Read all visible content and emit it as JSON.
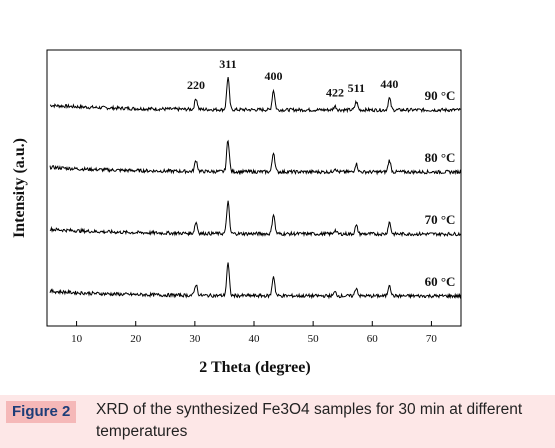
{
  "chart_data": {
    "type": "line",
    "xlabel": "2 Theta (degree)",
    "ylabel": "Intensity (a.u.)",
    "xlim": [
      5,
      75
    ],
    "xticks": [
      "10",
      "20",
      "30",
      "40",
      "50",
      "60",
      "70"
    ],
    "yticks": [],
    "grid": false,
    "line_color": "#000000",
    "peak_labels": [
      {
        "label": "220",
        "x": 30.2,
        "y": 1.2
      },
      {
        "label": "311",
        "x": 35.6,
        "y": 1.0
      },
      {
        "label": "400",
        "x": 43.3,
        "y": 1.0
      },
      {
        "label": "422",
        "x": 53.7,
        "y": 1.0
      },
      {
        "label": "511",
        "x": 57.3,
        "y": 1.0
      },
      {
        "label": "440",
        "x": 62.9,
        "y": 1.0
      }
    ],
    "series": [
      {
        "name": "90 °C",
        "offset": 3.0
      },
      {
        "name": "80 °C",
        "offset": 2.0
      },
      {
        "name": "70 °C",
        "offset": 1.0
      },
      {
        "name": "60 °C",
        "offset": 0.0
      }
    ],
    "peaks": [
      {
        "x": 30.2,
        "height": 0.18
      },
      {
        "x": 35.6,
        "height": 0.52
      },
      {
        "x": 43.3,
        "height": 0.32
      },
      {
        "x": 53.7,
        "height": 0.06
      },
      {
        "x": 57.3,
        "height": 0.13
      },
      {
        "x": 62.9,
        "height": 0.19
      }
    ]
  },
  "caption": {
    "label": "Figure 2",
    "text": "XRD of the synthesized Fe3O4 samples for 30 min at different temperatures"
  }
}
